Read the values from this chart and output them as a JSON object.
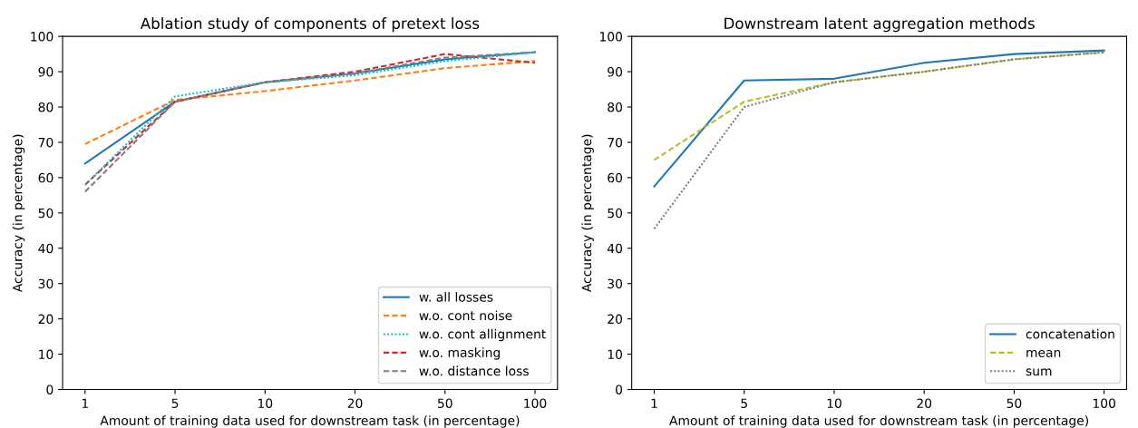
{
  "chart_data": [
    {
      "type": "line",
      "title": "Ablation study of components of pretext loss",
      "xlabel": "Amount of training data used for downstream task (in percentage)",
      "ylabel": "Accuracy (in percentage)",
      "categories": [
        "1",
        "5",
        "10",
        "20",
        "50",
        "100"
      ],
      "ylim": [
        0,
        100
      ],
      "yticks": [
        0,
        10,
        20,
        30,
        40,
        50,
        60,
        70,
        80,
        90,
        100
      ],
      "legend": "bottom right",
      "grid": false,
      "series": [
        {
          "name": "w. all losses",
          "color": "#1f77b4",
          "line_style": "solid",
          "values": [
            64,
            81.5,
            87,
            89.5,
            93.5,
            95.5
          ]
        },
        {
          "name": "w.o. cont noise",
          "color": "#ff7f0e",
          "line_style": "dashed",
          "values": [
            69.5,
            82,
            84.5,
            87.5,
            91,
            93
          ]
        },
        {
          "name": "w.o. cont allignment",
          "color": "#17becf",
          "line_style": "dotted",
          "values": [
            58,
            83,
            87,
            89,
            93,
            95.5
          ]
        },
        {
          "name": "w.o. masking",
          "color": "#d62728",
          "line_style": "dashed",
          "values": [
            58,
            81.5,
            87,
            90,
            95,
            92.5
          ]
        },
        {
          "name": "w.o. distance loss",
          "color": "#7f7f7f",
          "line_style": "dashed",
          "values": [
            56,
            81.5,
            87,
            89.5,
            94,
            95.5
          ]
        }
      ]
    },
    {
      "type": "line",
      "title": "Downstream latent aggregation methods",
      "xlabel": "Amount of training data used for downstream task (in percentage)",
      "ylabel": "Accuracy (in percentage)",
      "categories": [
        "1",
        "5",
        "10",
        "20",
        "50",
        "100"
      ],
      "ylim": [
        0,
        100
      ],
      "yticks": [
        0,
        10,
        20,
        30,
        40,
        50,
        60,
        70,
        80,
        90,
        100
      ],
      "legend": "bottom right",
      "grid": false,
      "series": [
        {
          "name": "concatenation",
          "color": "#1f77b4",
          "line_style": "solid",
          "values": [
            57.5,
            87.5,
            88,
            92.5,
            95,
            96
          ]
        },
        {
          "name": "mean",
          "color": "#bcbd22",
          "line_style": "dashed",
          "values": [
            65,
            81.5,
            87,
            90,
            93.5,
            95.5
          ]
        },
        {
          "name": "sum",
          "color": "#7f7f7f",
          "line_style": "dotted",
          "values": [
            45.5,
            80,
            87,
            90,
            93.5,
            95.5
          ]
        }
      ]
    }
  ]
}
